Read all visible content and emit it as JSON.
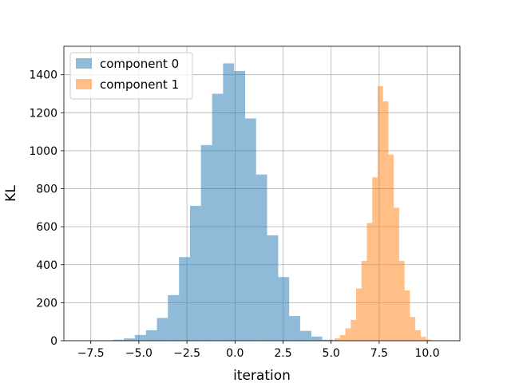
{
  "chart_data": {
    "type": "histogram",
    "title": "",
    "xlabel": "iteration",
    "ylabel": "KL",
    "xlim": [
      -8.9,
      11.7
    ],
    "ylim": [
      0,
      1550
    ],
    "x_ticks": [
      -7.5,
      -5.0,
      -2.5,
      0.0,
      2.5,
      5.0,
      7.5,
      10.0
    ],
    "x_tick_labels": [
      "−7.5",
      "−5.0",
      "−2.5",
      "0.0",
      "2.5",
      "5.0",
      "7.5",
      "10.0"
    ],
    "y_ticks": [
      0,
      200,
      400,
      600,
      800,
      1000,
      1200,
      1400
    ],
    "y_tick_labels": [
      "0",
      "200",
      "400",
      "600",
      "800",
      "1000",
      "1200",
      "1400"
    ],
    "grid": true,
    "legend_position": "upper-left",
    "series": [
      {
        "name": "component 0",
        "color": "#1f77b4",
        "alpha": 0.5,
        "bins": [
          {
            "x0": -7.5,
            "x1": -6.93,
            "count": 1
          },
          {
            "x0": -6.93,
            "x1": -6.35,
            "count": 2
          },
          {
            "x0": -6.35,
            "x1": -5.78,
            "count": 5
          },
          {
            "x0": -5.78,
            "x1": -5.21,
            "count": 12
          },
          {
            "x0": -5.21,
            "x1": -4.63,
            "count": 30
          },
          {
            "x0": -4.63,
            "x1": -4.06,
            "count": 55
          },
          {
            "x0": -4.06,
            "x1": -3.49,
            "count": 120
          },
          {
            "x0": -3.49,
            "x1": -2.91,
            "count": 240
          },
          {
            "x0": -2.91,
            "x1": -2.34,
            "count": 440
          },
          {
            "x0": -2.34,
            "x1": -1.77,
            "count": 710
          },
          {
            "x0": -1.77,
            "x1": -1.19,
            "count": 1030
          },
          {
            "x0": -1.19,
            "x1": -0.62,
            "count": 1300
          },
          {
            "x0": -0.62,
            "x1": -0.05,
            "count": 1460
          },
          {
            "x0": -0.05,
            "x1": 0.53,
            "count": 1420
          },
          {
            "x0": 0.53,
            "x1": 1.1,
            "count": 1170
          },
          {
            "x0": 1.1,
            "x1": 1.67,
            "count": 875
          },
          {
            "x0": 1.67,
            "x1": 2.25,
            "count": 555
          },
          {
            "x0": 2.25,
            "x1": 2.82,
            "count": 335
          },
          {
            "x0": 2.82,
            "x1": 3.39,
            "count": 130
          },
          {
            "x0": 3.39,
            "x1": 3.97,
            "count": 52
          },
          {
            "x0": 3.97,
            "x1": 4.54,
            "count": 22
          },
          {
            "x0": 4.54,
            "x1": 5.11,
            "count": 5
          },
          {
            "x0": 5.11,
            "x1": 5.69,
            "count": 1
          }
        ]
      },
      {
        "name": "component 1",
        "color": "#ff7f0e",
        "alpha": 0.5,
        "bins": [
          {
            "x0": 4.9,
            "x1": 5.18,
            "count": 3
          },
          {
            "x0": 5.18,
            "x1": 5.46,
            "count": 12
          },
          {
            "x0": 5.46,
            "x1": 5.74,
            "count": 30
          },
          {
            "x0": 5.74,
            "x1": 6.02,
            "count": 65
          },
          {
            "x0": 6.02,
            "x1": 6.3,
            "count": 110
          },
          {
            "x0": 6.3,
            "x1": 6.58,
            "count": 275
          },
          {
            "x0": 6.58,
            "x1": 6.86,
            "count": 420
          },
          {
            "x0": 6.86,
            "x1": 7.14,
            "count": 620
          },
          {
            "x0": 7.14,
            "x1": 7.42,
            "count": 860
          },
          {
            "x0": 7.42,
            "x1": 7.7,
            "count": 1340
          },
          {
            "x0": 7.7,
            "x1": 7.98,
            "count": 1260
          },
          {
            "x0": 7.98,
            "x1": 8.26,
            "count": 980
          },
          {
            "x0": 8.26,
            "x1": 8.54,
            "count": 700
          },
          {
            "x0": 8.54,
            "x1": 8.82,
            "count": 420
          },
          {
            "x0": 8.82,
            "x1": 9.1,
            "count": 265
          },
          {
            "x0": 9.1,
            "x1": 9.38,
            "count": 125
          },
          {
            "x0": 9.38,
            "x1": 9.66,
            "count": 55
          },
          {
            "x0": 9.66,
            "x1": 9.94,
            "count": 20
          },
          {
            "x0": 9.94,
            "x1": 10.22,
            "count": 6
          }
        ]
      }
    ]
  }
}
